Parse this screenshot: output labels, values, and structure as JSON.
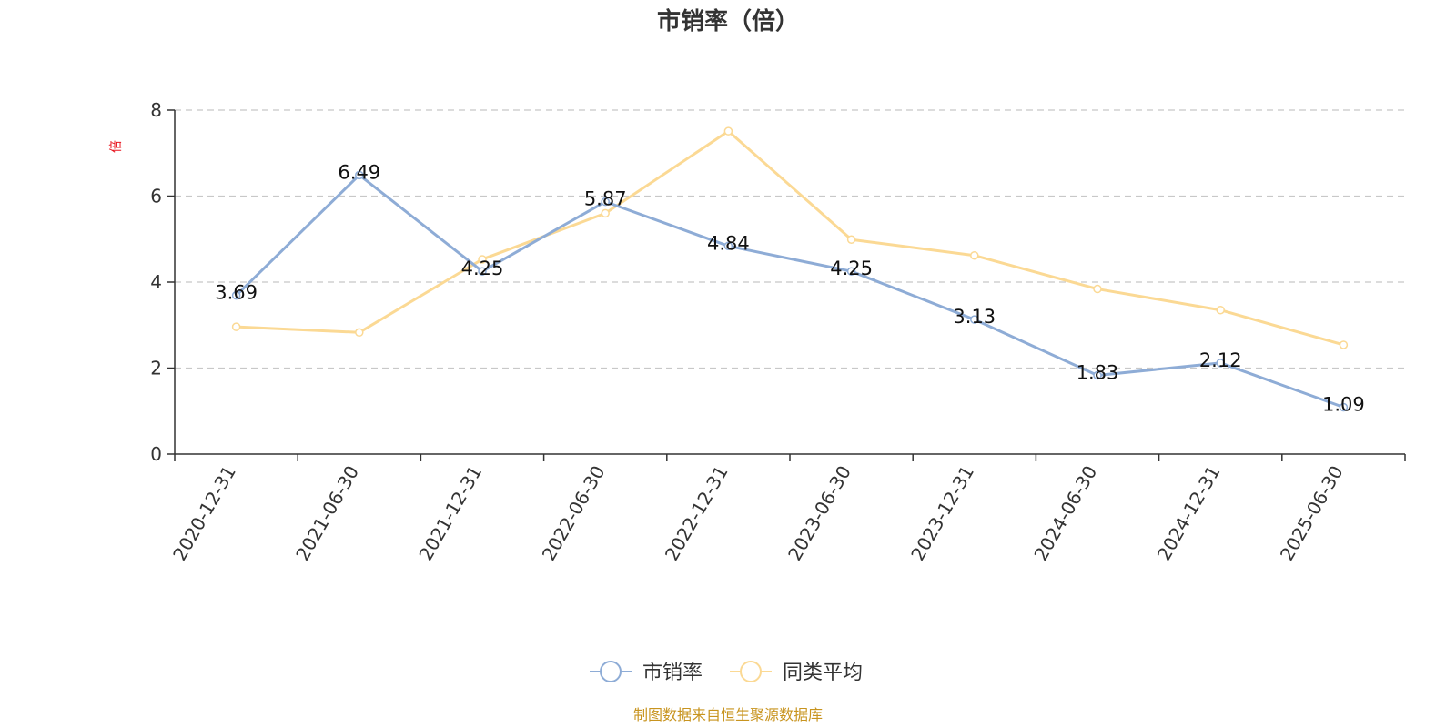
{
  "chart_data": {
    "type": "line",
    "title": "市销率（倍）",
    "ylabel": "倍",
    "ylim": [
      0,
      8
    ],
    "yticks": [
      0,
      2,
      4,
      6,
      8
    ],
    "categories": [
      "2020-12-31",
      "2021-06-30",
      "2021-12-31",
      "2022-06-30",
      "2022-12-31",
      "2023-06-30",
      "2023-12-31",
      "2024-06-30",
      "2024-12-31",
      "2025-06-30"
    ],
    "series": [
      {
        "name": "市销率",
        "color": "#8eacd6",
        "values": [
          3.69,
          6.49,
          4.25,
          5.87,
          4.84,
          4.25,
          3.13,
          1.83,
          2.12,
          1.09
        ],
        "labels": [
          "3.69",
          "6.49",
          "4.25",
          "5.87",
          "4.84",
          "4.25",
          "3.13",
          "1.83",
          "2.12",
          "1.09"
        ]
      },
      {
        "name": "同类平均",
        "color": "#fbd994",
        "values": [
          2.96,
          2.83,
          4.53,
          5.6,
          7.51,
          4.99,
          4.62,
          3.84,
          3.35,
          2.54
        ]
      }
    ],
    "grid": "horizontal dashed",
    "legend_position": "bottom-center"
  },
  "source": "制图数据来自恒生聚源数据库",
  "colors": {
    "ylabel": "#e8141e",
    "source": "#c8941f",
    "axis": "#333333",
    "grid": "#c8c8c8"
  }
}
